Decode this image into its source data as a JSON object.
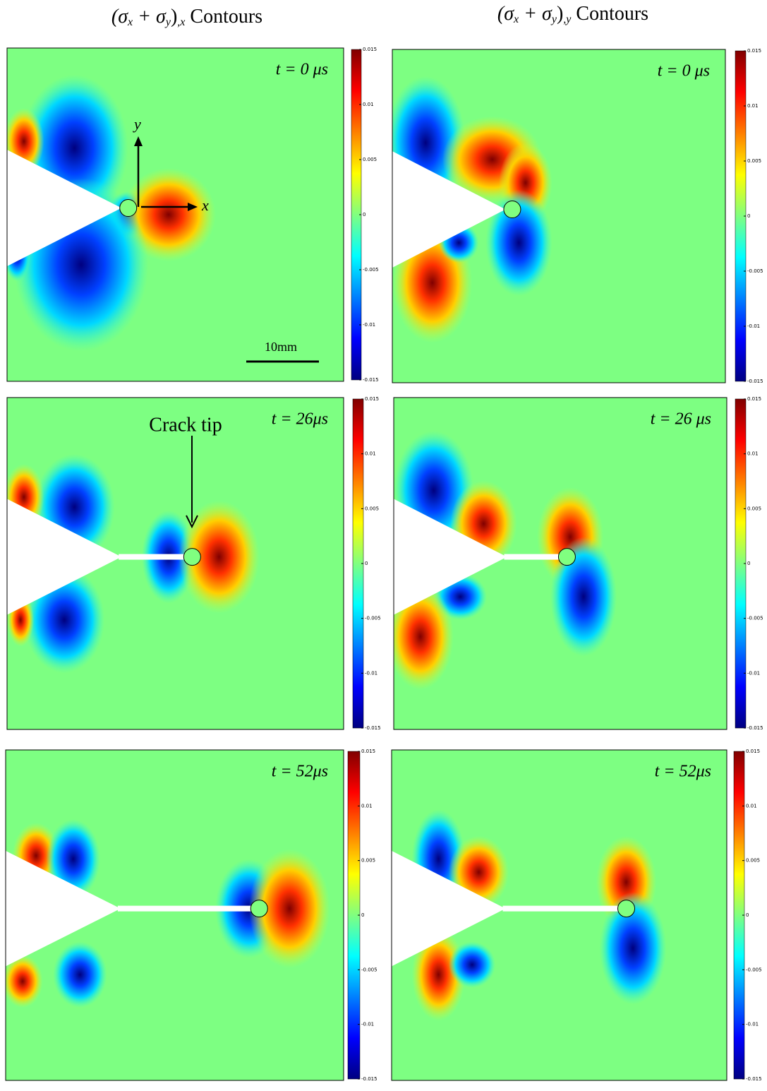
{
  "headers": [
    {
      "parts": [
        "(σ",
        "x",
        " + σ",
        "y",
        ")",
        ",x"
      ],
      "label": "Contours"
    },
    {
      "parts": [
        "(σ",
        "x",
        " + σ",
        "y",
        ")",
        ",y"
      ],
      "label": "Contours"
    }
  ],
  "panels": [
    {
      "time": "t = 0 μs"
    },
    {
      "time": "t = 0 μs"
    },
    {
      "time": "t = 26μs"
    },
    {
      "time": "t = 26 μs"
    },
    {
      "time": "t = 52μs"
    },
    {
      "time": "t = 52μs"
    }
  ],
  "annotations": {
    "axis_x": "x",
    "axis_y": "y",
    "scale_bar": "10mm",
    "crack_tip": "Crack tip"
  },
  "colorbar": {
    "lim": [
      -0.015,
      0.015
    ],
    "ticks": [
      0.015,
      0.01,
      0.005,
      0,
      -0.005,
      -0.01,
      -0.015
    ]
  }
}
